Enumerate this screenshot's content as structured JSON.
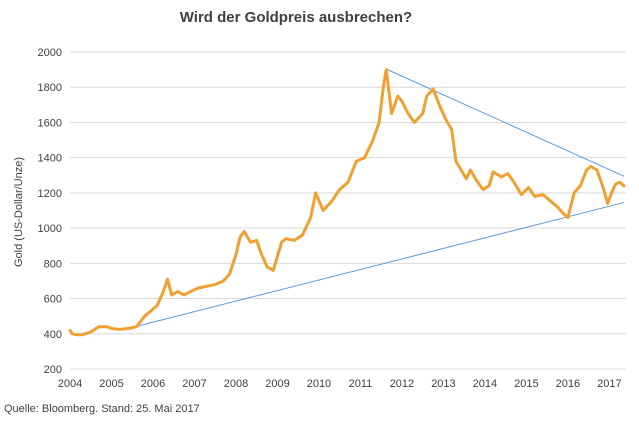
{
  "chart_data": {
    "type": "line",
    "title": "Wird der Goldpreis ausbrechen?",
    "ylabel": "Gold (US-Dollar/Unze)",
    "xlabel": "",
    "source": "Quelle: Bloomberg. Stand: 25. Mai 2017",
    "ylim": [
      200,
      2000
    ],
    "xlim": [
      2004.0,
      2017.4
    ],
    "yticks": [
      "200",
      "400",
      "600",
      "800",
      "1000",
      "1200",
      "1400",
      "1600",
      "1800",
      "2000"
    ],
    "xticks": [
      "2004",
      "2005",
      "2006",
      "2007",
      "2008",
      "2009",
      "2010",
      "2011",
      "2012",
      "2013",
      "2014",
      "2015",
      "2016",
      "2017"
    ],
    "grid": "horizontal",
    "colors": {
      "gold_series": "#F0A030",
      "trendlines": "#5B9BD5",
      "grid": "#d9d9d9"
    },
    "series": [
      {
        "x": [
          2004.0,
          2004.05,
          2004.15,
          2004.3,
          2004.5,
          2004.7,
          2004.9,
          2005.0,
          2005.2,
          2005.4,
          2005.6,
          2005.8,
          2005.95,
          2006.1,
          2006.25,
          2006.35,
          2006.45,
          2006.6,
          2006.75,
          2006.9,
          2007.1,
          2007.3,
          2007.5,
          2007.7,
          2007.85,
          2008.0,
          2008.1,
          2008.2,
          2008.35,
          2008.5,
          2008.6,
          2008.75,
          2008.9,
          2009.1,
          2009.2,
          2009.4,
          2009.6,
          2009.8,
          2009.92,
          2010.1,
          2010.3,
          2010.5,
          2010.7,
          2010.9,
          2011.1,
          2011.3,
          2011.45,
          2011.55,
          2011.62,
          2011.75,
          2011.9,
          2012.0,
          2012.15,
          2012.3,
          2012.5,
          2012.6,
          2012.75,
          2012.9,
          2013.05,
          2013.2,
          2013.3,
          2013.45,
          2013.55,
          2013.65,
          2013.8,
          2013.95,
          2014.1,
          2014.2,
          2014.4,
          2014.55,
          2014.7,
          2014.88,
          2015.05,
          2015.2,
          2015.4,
          2015.6,
          2015.75,
          2015.9,
          2016.0,
          2016.15,
          2016.3,
          2016.45,
          2016.55,
          2016.7,
          2016.85,
          2016.96,
          2017.05,
          2017.15,
          2017.25,
          2017.35
        ],
        "y": [
          420,
          400,
          395,
          395,
          410,
          440,
          440,
          430,
          425,
          430,
          440,
          500,
          530,
          560,
          640,
          710,
          620,
          640,
          620,
          640,
          660,
          670,
          680,
          700,
          740,
          850,
          950,
          980,
          920,
          930,
          860,
          780,
          760,
          920,
          940,
          930,
          960,
          1060,
          1200,
          1100,
          1150,
          1220,
          1260,
          1380,
          1400,
          1500,
          1600,
          1800,
          1900,
          1650,
          1750,
          1720,
          1650,
          1600,
          1650,
          1750,
          1790,
          1700,
          1620,
          1560,
          1380,
          1320,
          1280,
          1330,
          1270,
          1220,
          1240,
          1320,
          1290,
          1310,
          1260,
          1190,
          1230,
          1180,
          1190,
          1150,
          1120,
          1080,
          1060,
          1200,
          1240,
          1330,
          1350,
          1330,
          1230,
          1140,
          1200,
          1250,
          1260,
          1240
        ]
      }
    ],
    "trendlines": [
      {
        "name": "",
        "x": [
          2011.65,
          2017.35
        ],
        "y": [
          1900,
          1295
        ]
      },
      {
        "name": "",
        "x": [
          2005.4,
          2017.35
        ],
        "y": [
          430,
          1145
        ]
      }
    ]
  }
}
